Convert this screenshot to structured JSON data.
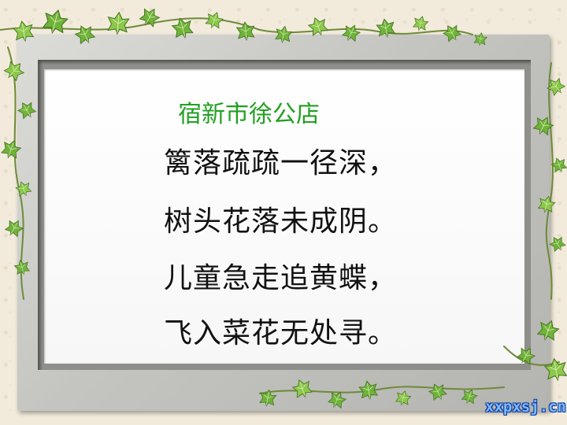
{
  "slide": {
    "title": "宿新市徐公店",
    "lines": [
      "篱落疏疏一径深，",
      "树头花落未成阴。",
      "儿童急走追黄蝶，",
      "飞入菜花无处寻。"
    ],
    "watermark": "xxpxsj.cn"
  },
  "colors": {
    "title": "#22a022",
    "text": "#111111",
    "background": "#f2ebdc",
    "frame": "#c8c8c4",
    "leaf": "#6fb33a"
  },
  "decorations": {
    "vine_icon": "ivy-leaf-icon"
  }
}
